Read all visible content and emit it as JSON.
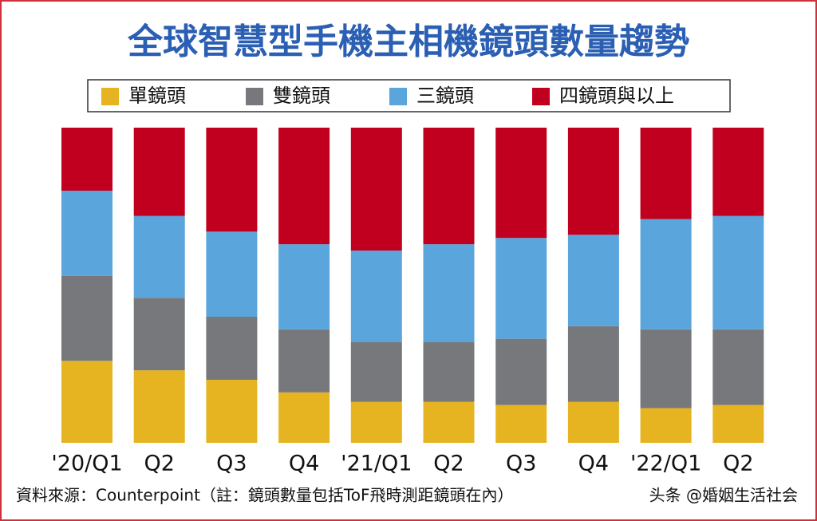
{
  "chart_data": {
    "type": "stacked_bar",
    "title": "全球智慧型手機主相機鏡頭數量趨勢",
    "categories": [
      "'20/Q1",
      "Q2",
      "Q3",
      "Q4",
      "'21/Q1",
      "Q2",
      "Q3",
      "Q4",
      "'22/Q1",
      "Q2"
    ],
    "series": [
      {
        "name": "單鏡頭",
        "color": "#e5b420",
        "values": [
          26,
          23,
          20,
          16,
          13,
          13,
          12,
          13,
          11,
          12
        ]
      },
      {
        "name": "雙鏡頭",
        "color": "#77787b",
        "values": [
          27,
          23,
          20,
          20,
          19,
          19,
          21,
          24,
          25,
          24
        ]
      },
      {
        "name": "三鏡頭",
        "color": "#5aa5dc",
        "values": [
          27,
          26,
          27,
          27,
          29,
          31,
          32,
          29,
          35,
          36
        ]
      },
      {
        "name": "四鏡頭與以上",
        "color": "#c0001e",
        "values": [
          20,
          28,
          33,
          37,
          39,
          37,
          35,
          34,
          29,
          28
        ]
      }
    ],
    "ylim": [
      0,
      100
    ],
    "source": "資料來源：Counterpoint（註：鏡頭數量包括ToF飛時測距鏡頭在內）",
    "watermark": "头条 @婚姻生活社会"
  }
}
